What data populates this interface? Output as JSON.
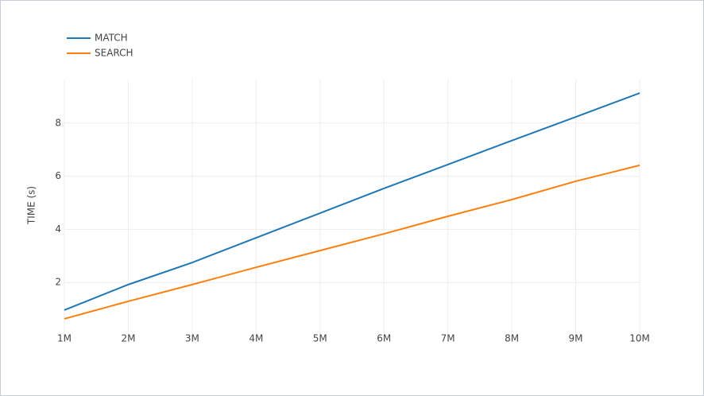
{
  "chart_data": {
    "type": "line",
    "y_label": "TIME (s)",
    "categories": [
      "1M",
      "2M",
      "3M",
      "4M",
      "5M",
      "6M",
      "7M",
      "8M",
      "9M",
      "10M"
    ],
    "series": [
      {
        "name": "MATCH",
        "color": "#1f77b4",
        "values": [
          0.96,
          1.92,
          2.75,
          3.68,
          4.61,
          5.54,
          6.44,
          7.34,
          8.23,
          9.13
        ]
      },
      {
        "name": "SEARCH",
        "color": "#ff7f0e",
        "values": [
          0.63,
          1.29,
          1.92,
          2.57,
          3.2,
          3.83,
          4.49,
          5.12,
          5.81,
          6.41
        ]
      }
    ],
    "ylim": [
      0.06,
      9.64
    ],
    "yticks": [
      2,
      4,
      6,
      8
    ],
    "grid": true,
    "legend": "top-left"
  }
}
